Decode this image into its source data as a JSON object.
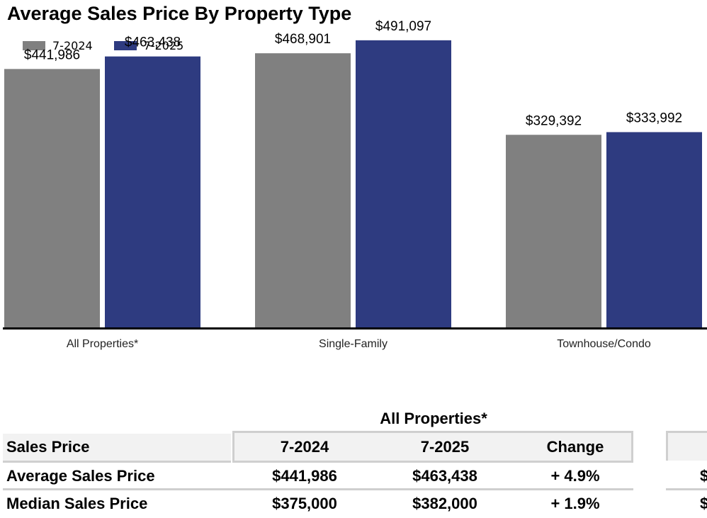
{
  "title": "Average Sales Price By Property Type",
  "legend": [
    {
      "label": "7-2024",
      "color": "#808080"
    },
    {
      "label": "7-2025",
      "color": "#2e3b80"
    }
  ],
  "chart_data": {
    "type": "bar",
    "title": "Average Sales Price By Property Type",
    "categories": [
      "All Properties*",
      "Single-Family",
      "Townhouse/Condo"
    ],
    "series": [
      {
        "name": "7-2024",
        "values": [
          441986,
          468901,
          329392
        ],
        "labels": [
          "$441,986",
          "$468,901",
          "$329,392"
        ],
        "color": "#808080"
      },
      {
        "name": "7-2025",
        "values": [
          463438,
          491097,
          333992
        ],
        "labels": [
          "$463,438",
          "$491,097",
          "$333,992"
        ],
        "color": "#2e3b80"
      }
    ],
    "xlabel": "",
    "ylabel": "",
    "ylim": [
      0,
      560000
    ],
    "grid": false,
    "legend_position": "top-left"
  },
  "table": {
    "title": "All Properties*",
    "header": {
      "label": "Sales Price",
      "col_a": "7-2024",
      "col_b": "7-2025",
      "col_c": "Change"
    },
    "rows": [
      {
        "label": "Average Sales Price",
        "col_a": "$441,986",
        "col_b": "$463,438",
        "col_c": "+ 4.9%",
        "peek": "$"
      },
      {
        "label": "Median Sales Price",
        "col_a": "$375,000",
        "col_b": "$382,000",
        "col_c": "+ 1.9%",
        "peek": "$"
      }
    ]
  }
}
